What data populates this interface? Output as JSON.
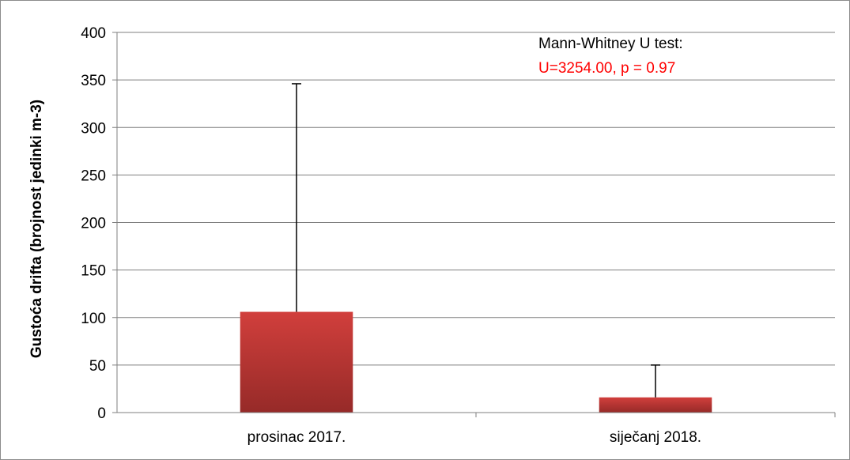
{
  "chart_data": {
    "type": "bar",
    "categories": [
      "prosinac 2017.",
      "siječanj 2018."
    ],
    "values": [
      106,
      16
    ],
    "error_upper": [
      346,
      50
    ],
    "ylabel": "Gustoća drifta (brojnost jedinki m-3)",
    "xlabel": "",
    "ylim": [
      0,
      400
    ],
    "yticks": [
      0,
      50,
      100,
      150,
      200,
      250,
      300,
      350,
      400
    ],
    "grid": true,
    "legend": "none",
    "annotation": {
      "title": "Mann-Whitney U test:",
      "stat": "U=3254.00, p = 0.97"
    },
    "colors": {
      "bar_top": "#d13f3c",
      "bar_bottom": "#962a28",
      "annotation_stat": "#ff0000",
      "grid": "#7f7f7f",
      "axis": "#7f7f7f",
      "errorbar": "#000000"
    }
  }
}
